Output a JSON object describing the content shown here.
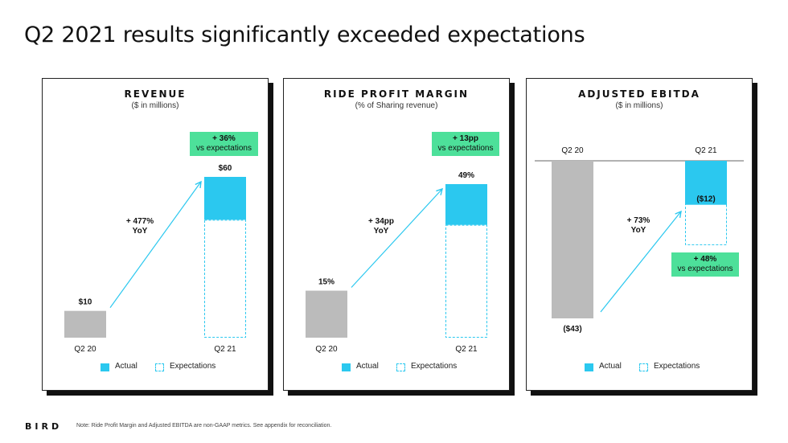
{
  "page": {
    "title": "Q2 2021 results significantly exceeded expectations",
    "logo": "BIRD",
    "note": "Note: Ride Profit Margin and Adjusted EBITDA are non-GAAP metrics. See appendix for reconciliation."
  },
  "colors": {
    "actual": "#2bc8ef",
    "baseline": "#bbbbbb",
    "badge": "#4de09a",
    "arrow": "#2bc8ef"
  },
  "legend": {
    "actual": "Actual",
    "expectations": "Expectations"
  },
  "chart_data": [
    {
      "type": "bar",
      "title": "REVENUE",
      "subtitle": "($ in millions)",
      "categories": [
        "Q2 20",
        "Q2 21"
      ],
      "values": [
        10,
        60
      ],
      "value_labels": [
        "$10",
        "$60"
      ],
      "expectation_q2_21": 44,
      "growth_label": [
        "+ 477%",
        "YoY"
      ],
      "beat_label": [
        "+ 36%",
        "vs expectations"
      ],
      "ylim": [
        0,
        60
      ]
    },
    {
      "type": "bar",
      "title": "RIDE PROFIT MARGIN",
      "subtitle": "(% of Sharing revenue)",
      "categories": [
        "Q2 20",
        "Q2 21"
      ],
      "values": [
        15,
        49
      ],
      "value_labels": [
        "15%",
        "49%"
      ],
      "expectation_q2_21": 36,
      "growth_label": [
        "+ 34pp",
        "YoY"
      ],
      "beat_label": [
        "+ 13pp",
        "vs expectations"
      ],
      "ylim": [
        0,
        49
      ]
    },
    {
      "type": "bar",
      "title": "ADJUSTED EBITDA",
      "subtitle": "($ in millions)",
      "categories": [
        "Q2 20",
        "Q2 21"
      ],
      "values": [
        -43,
        -12
      ],
      "value_labels": [
        "($43)",
        "($12)"
      ],
      "expectation_q2_21": -23,
      "growth_label": [
        "+ 73%",
        "YoY"
      ],
      "beat_label": [
        "+ 48%",
        "vs expectations"
      ],
      "ylim": [
        -43,
        0
      ]
    }
  ]
}
